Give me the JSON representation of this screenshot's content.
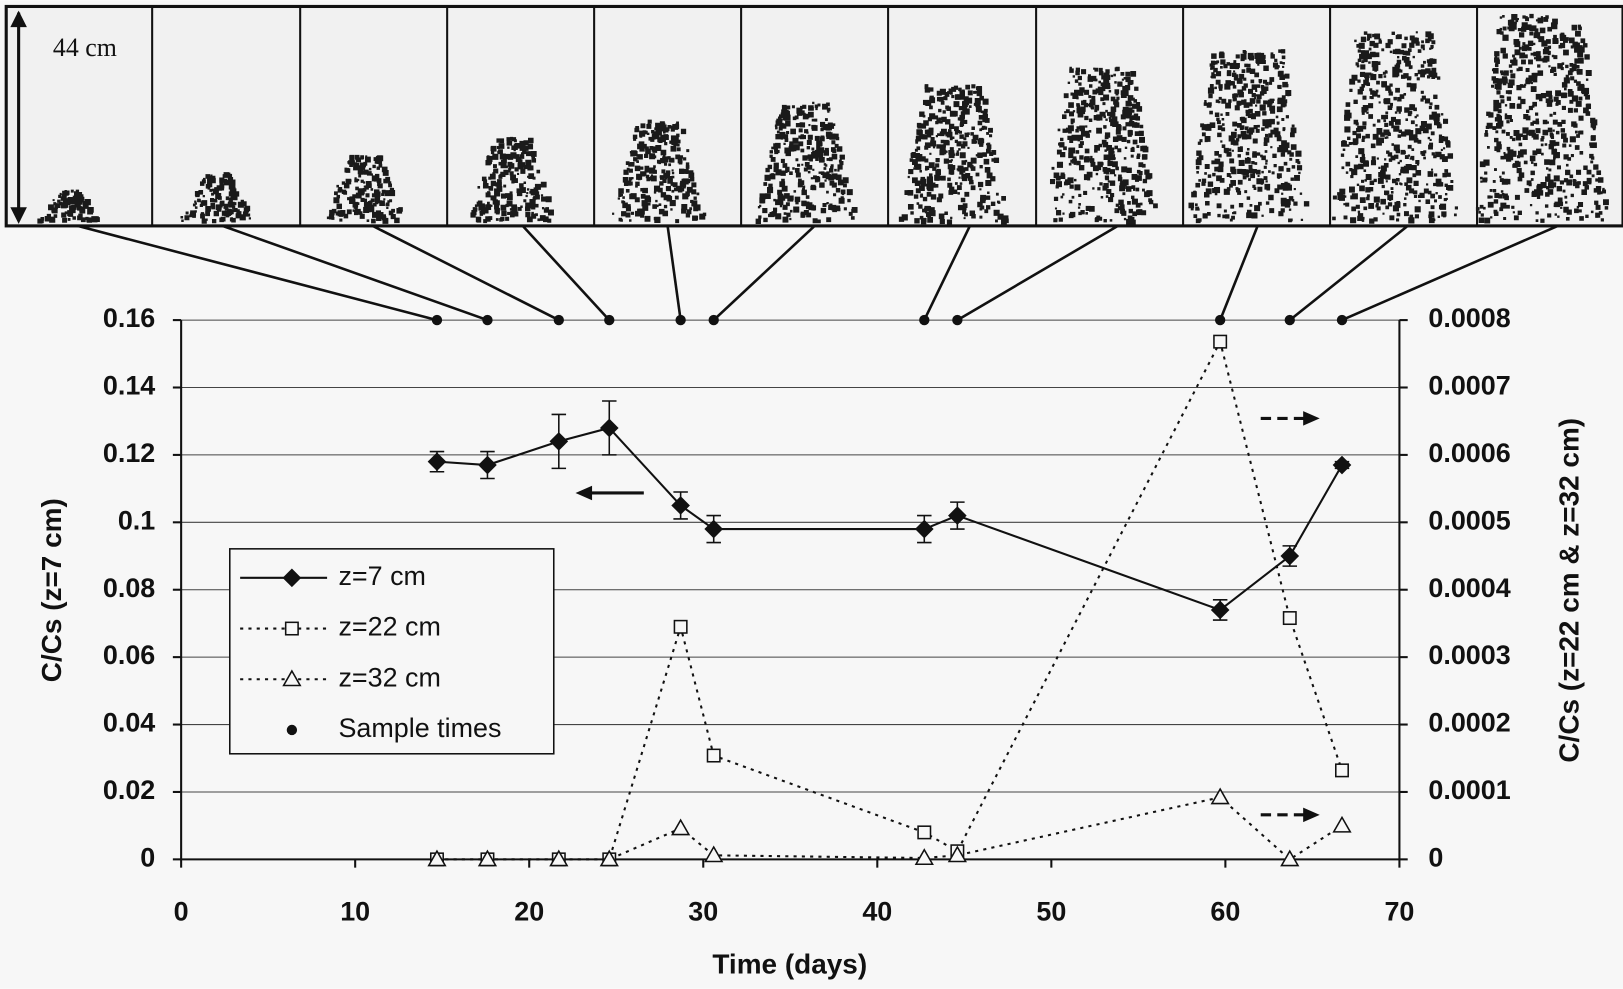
{
  "chart_data": {
    "type": "line",
    "panel_label": "44 cm",
    "x_label": "Time (days)",
    "y_label": "C/Cs (z=7 cm)",
    "y2_label": "C/Cs (z=22 cm & z=32 cm)",
    "x": [
      14.7,
      17.6,
      21.7,
      24.6,
      28.7,
      30.6,
      42.7,
      44.6,
      59.7,
      63.7,
      66.7
    ],
    "xlim": [
      0,
      70
    ],
    "xticks": [
      0,
      10,
      20,
      30,
      40,
      50,
      60,
      70
    ],
    "ylim": [
      0,
      0.16
    ],
    "yticks": [
      0,
      0.02,
      0.04,
      0.06,
      0.08,
      0.1,
      0.12,
      0.14,
      0.16
    ],
    "y2lim": [
      0,
      0.0008
    ],
    "y2ticks": [
      0,
      0.0001,
      0.0002,
      0.0003,
      0.0004,
      0.0005,
      0.0006,
      0.0007,
      0.0008
    ],
    "grid": true,
    "legend": "lower left",
    "series": [
      {
        "name": "z=7 cm",
        "color": "#111111",
        "marker": "diamond",
        "dash": "solid",
        "values": [
          0.118,
          0.117,
          0.124,
          0.128,
          0.105,
          0.098,
          0.098,
          0.102,
          0.074,
          0.09,
          0.117
        ],
        "errors": [
          0.003,
          0.004,
          0.008,
          0.008,
          0.004,
          0.004,
          0.004,
          0.004,
          0.003,
          0.003,
          0.001
        ]
      },
      {
        "name": "z=22 cm",
        "color": "#111111",
        "marker": "square",
        "dash": "dotted",
        "axis": "y2",
        "values": [
          0,
          0,
          0,
          0,
          0.000345,
          0.000154,
          4e-05,
          1.2e-05,
          0.000768,
          0.000358,
          0.000132
        ]
      },
      {
        "name": "z=32 cm",
        "color": "#111111",
        "marker": "triangle",
        "dash": "dotted",
        "axis": "y2",
        "values": [
          0,
          0,
          0,
          0,
          4.6e-05,
          6e-06,
          2e-06,
          6e-06,
          9.2e-05,
          0,
          5e-05
        ]
      },
      {
        "name": "Sample times",
        "color": "#111111",
        "marker": "dot",
        "dash": "none",
        "values": [
          0.16,
          0.16,
          0.16,
          0.16,
          0.16,
          0.16,
          0.16,
          0.16,
          0.16,
          0.16,
          0.16
        ]
      }
    ]
  }
}
